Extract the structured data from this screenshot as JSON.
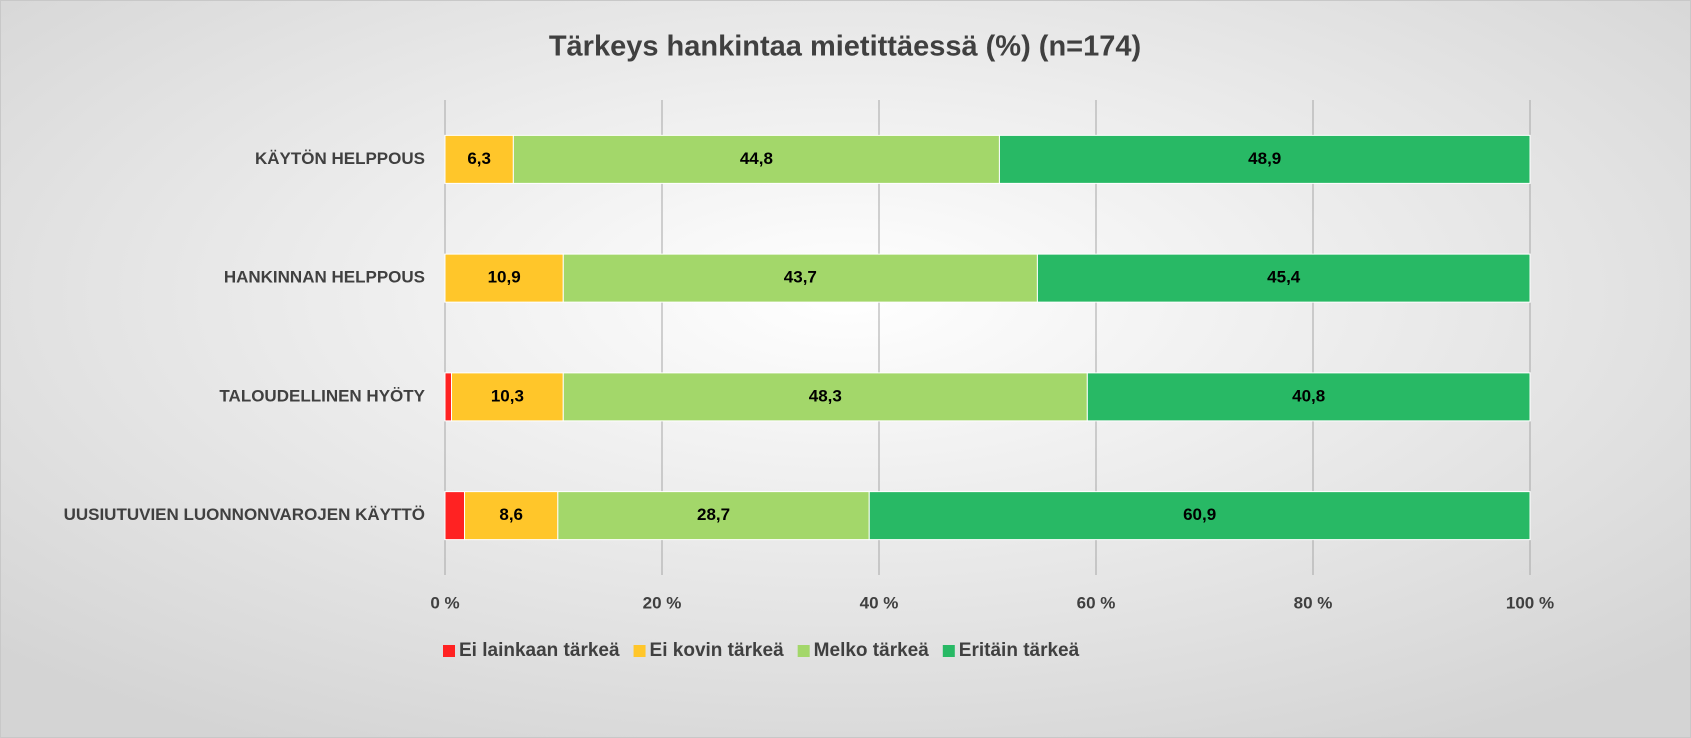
{
  "chart_data": {
    "type": "stacked-barh",
    "title": "Tärkeys hankintaa mietittäessä (%) (n=174)",
    "categories": [
      "KÄYTÖN HELPPOUS",
      "HANKINNAN HELPPOUS",
      "TALOUDELLINEN HYÖTY",
      "UUSIUTUVIEN LUONNONVAROJEN KÄYTTÖ"
    ],
    "series": [
      {
        "name": "Ei lainkaan tärkeä",
        "color": "#ff2222",
        "values": [
          0,
          0,
          0.6,
          1.8
        ]
      },
      {
        "name": "Ei kovin tärkeä",
        "color": "#ffc62a",
        "values": [
          6.3,
          10.9,
          10.3,
          8.6
        ],
        "value_labels": [
          "6,3",
          "10,9",
          "10,3",
          "8,6"
        ]
      },
      {
        "name": "Melko tärkeä",
        "color": "#a3d76a",
        "values": [
          44.8,
          43.7,
          48.3,
          28.7
        ],
        "value_labels": [
          "44,8",
          "43,7",
          "48,3",
          "28,7"
        ]
      },
      {
        "name": "Eritäin tärkeä",
        "color": "#28b965",
        "values": [
          48.9,
          45.4,
          40.8,
          60.9
        ],
        "value_labels": [
          "48,9",
          "45,4",
          "40,8",
          "60,9"
        ]
      }
    ],
    "xlim": [
      0,
      100
    ],
    "xticks": [
      {
        "value": 0,
        "label": "0 %"
      },
      {
        "value": 20,
        "label": "20 %"
      },
      {
        "value": 40,
        "label": "40 %"
      },
      {
        "value": 60,
        "label": "60 %"
      },
      {
        "value": 80,
        "label": "80 %"
      },
      {
        "value": 100,
        "label": "100 %"
      }
    ],
    "grid": true,
    "legend": "bottom"
  }
}
